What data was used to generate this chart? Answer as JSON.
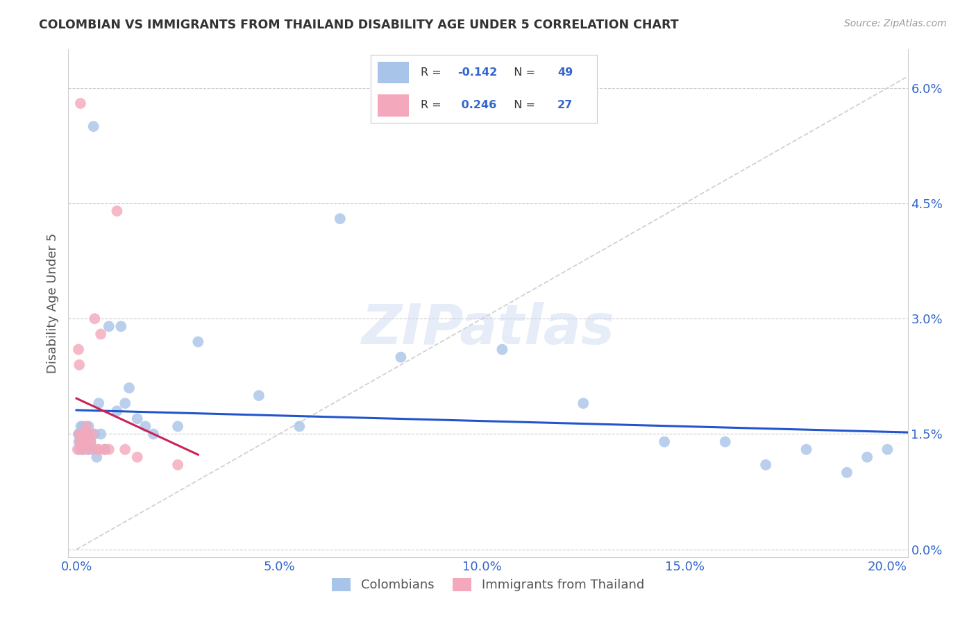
{
  "title": "COLOMBIAN VS IMMIGRANTS FROM THAILAND DISABILITY AGE UNDER 5 CORRELATION CHART",
  "source": "Source: ZipAtlas.com",
  "colombian_R": -0.142,
  "colombian_N": 49,
  "thailand_R": 0.246,
  "thailand_N": 27,
  "legend_label_colombian": "Colombians",
  "legend_label_thailand": "Immigrants from Thailand",
  "color_colombian": "#a8c4e8",
  "color_thailand": "#f4a8bb",
  "color_colombian_line": "#2255cc",
  "color_thailand_line": "#cc2255",
  "color_diagonal": "#cccccc",
  "watermark": "ZIPatlas",
  "xlim": [
    0.0,
    20.5
  ],
  "ylim": [
    0.0,
    6.5
  ],
  "xtick_vals": [
    0.0,
    5.0,
    10.0,
    15.0,
    20.0
  ],
  "ytick_vals": [
    0.0,
    1.5,
    3.0,
    4.5,
    6.0
  ],
  "colombian_x": [
    0.05,
    0.06,
    0.07,
    0.08,
    0.09,
    0.1,
    0.11,
    0.12,
    0.13,
    0.15,
    0.16,
    0.17,
    0.18,
    0.2,
    0.22,
    0.25,
    0.28,
    0.3,
    0.35,
    0.4,
    0.45,
    0.5,
    0.6,
    0.7,
    0.8,
    1.0,
    1.1,
    1.2,
    1.3,
    1.5,
    1.7,
    1.9,
    2.5,
    3.0,
    4.5,
    5.5,
    6.5,
    8.0,
    10.5,
    12.5,
    14.5,
    16.0,
    17.0,
    18.0,
    19.0,
    19.5,
    20.0,
    0.42,
    0.55
  ],
  "colombian_y": [
    1.5,
    1.4,
    1.5,
    1.3,
    1.5,
    1.4,
    1.6,
    1.5,
    1.5,
    1.3,
    1.6,
    1.4,
    1.3,
    1.5,
    1.4,
    1.5,
    1.3,
    1.6,
    1.4,
    1.3,
    1.5,
    1.2,
    1.5,
    1.3,
    2.9,
    1.8,
    2.9,
    1.9,
    2.1,
    1.7,
    1.6,
    1.5,
    1.6,
    2.7,
    2.0,
    1.6,
    4.3,
    2.5,
    2.6,
    1.9,
    1.4,
    1.4,
    1.1,
    1.3,
    1.0,
    1.2,
    1.3,
    5.5,
    1.9
  ],
  "thailand_x": [
    0.03,
    0.05,
    0.07,
    0.08,
    0.09,
    0.1,
    0.12,
    0.14,
    0.16,
    0.18,
    0.2,
    0.22,
    0.25,
    0.28,
    0.3,
    0.35,
    0.4,
    0.45,
    0.5,
    0.55,
    0.6,
    0.7,
    0.8,
    1.0,
    1.2,
    1.5,
    2.5
  ],
  "thailand_y": [
    1.3,
    2.6,
    2.4,
    1.5,
    1.4,
    5.8,
    1.5,
    1.4,
    1.3,
    1.4,
    1.5,
    1.5,
    1.6,
    1.5,
    1.3,
    1.4,
    1.5,
    3.0,
    1.3,
    1.3,
    2.8,
    1.3,
    1.3,
    4.4,
    1.3,
    1.2,
    1.1
  ]
}
